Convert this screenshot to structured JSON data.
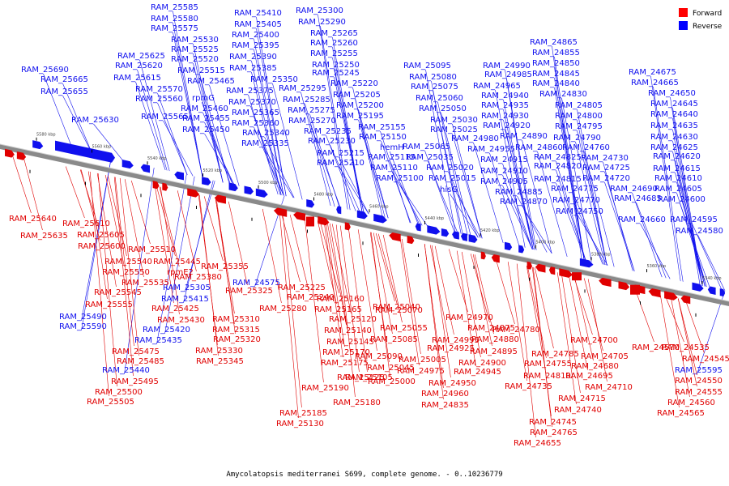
{
  "caption": "Amycolatopsis mediterranei S699, complete genome. - 0..10236779",
  "legend": [
    {
      "label": "Forward",
      "color": "#ff0000"
    },
    {
      "label": "Reverse",
      "color": "#0000ff"
    }
  ],
  "colors": {
    "forward": "#e00000",
    "reverse": "#1010ee",
    "axis": "#888888"
  },
  "ticks": [
    "5580 kbp",
    "5560 kbp",
    "5540 kbp",
    "5520 kbp",
    "5500 kbp",
    "5480 kbp",
    "5460 kbp",
    "5440 kbp",
    "5420 kbp",
    "5400 kbp",
    "5380 kbp",
    "5360 kbp",
    "5340 kbp"
  ],
  "reverse_labels": [
    "RAM_25690",
    "RAM_25665",
    "RAM_25655",
    "RAM_25630",
    "RAM_25625",
    "RAM_25620",
    "RAM_25615",
    "RAM_25585",
    "RAM_25580",
    "RAM_25575",
    "RAM_25570",
    "RAM_25560",
    "RAM_25565",
    "RAM_25530",
    "RAM_25525",
    "RAM_25520",
    "RAM_25515",
    "RAM_25465",
    "rpmG",
    "RAM_25460",
    "RAM_25455",
    "RAM_25450",
    "RAM_25410",
    "RAM_25405",
    "RAM_25400",
    "RAM_25395",
    "RAM_25390",
    "RAM_25385",
    "RAM_25375",
    "RAM_25370",
    "RAM_25365",
    "RAM_25360",
    "RAM_25350",
    "RAM_25340",
    "RAM_25335",
    "RAM_25300",
    "RAM_25290",
    "RAM_25265",
    "RAM_25260",
    "RAM_25255",
    "RAM_25250",
    "RAM_25245",
    "RAM_25295",
    "RAM_25285",
    "RAM_25275",
    "RAM_25270",
    "RAM_25235",
    "RAM_25230",
    "RAM_25220",
    "RAM_25205",
    "RAM_25200",
    "RAM_25195",
    "RAM_25215",
    "RAM_25210",
    "RAM_25155",
    "RAM_25150",
    "hemH",
    "RAM_25115",
    "RAM_25110",
    "RAM_25100",
    "RAM_25095",
    "RAM_25080",
    "RAM_25075",
    "RAM_25060",
    "RAM_25050",
    "RAM_25030",
    "RAM_25025",
    "RAM_25065",
    "RAM_25035",
    "RAM_25020",
    "RAM_25015",
    "hisG",
    "RAM_24990",
    "RAM_24985",
    "RAM_24965",
    "RAM_24940",
    "RAM_24935",
    "RAM_24930",
    "RAM_24920",
    "RAM_24980",
    "RAM_24955",
    "RAM_24915",
    "RAM_24910",
    "RAM_24905",
    "RAM_24865",
    "RAM_24855",
    "RAM_24850",
    "RAM_24845",
    "RAM_24840",
    "RAM_24830",
    "RAM_24805",
    "RAM_24800",
    "RAM_24795",
    "RAM_24890",
    "RAM_24860",
    "RAM_24790",
    "RAM_24760",
    "RAM_24825",
    "RAM_24820",
    "RAM_24815",
    "RAM_24885",
    "RAM_24870",
    "RAM_24730",
    "RAM_24725",
    "RAM_24720",
    "RAM_24775",
    "RAM_24770",
    "RAM_24750",
    "RAM_24690",
    "RAM_24685",
    "RAM_24660",
    "RAM_24675",
    "RAM_24665",
    "RAM_24650",
    "RAM_24645",
    "RAM_24640",
    "RAM_24635",
    "RAM_24630",
    "RAM_24625",
    "RAM_24620",
    "RAM_24615",
    "RAM_24610",
    "RAM_24605",
    "RAM_24600",
    "RAM_24595",
    "RAM_24580",
    "RAM_24575",
    "RAM_25305",
    "RAM_25415",
    "RAM_25420",
    "RAM_25435",
    "RAM_25440",
    "RAM_25490",
    "RAM_25590",
    "RAM_25595",
    "RAM_24540"
  ],
  "forward_labels": [
    "RAM_25640",
    "RAM_25635",
    "RAM_25610",
    "RAM_25605",
    "RAM_25600",
    "RAM_25510",
    "RAM_25540",
    "RAM_25445",
    "RAM_25550",
    "rpmE2",
    "RAM_25535",
    "RAM_25545",
    "RAM_25555",
    "RAM_25380",
    "RAM_25355",
    "RAM_25325",
    "RAM_25425",
    "RAM_25430",
    "RAM_25475",
    "RAM_25485",
    "RAM_25495",
    "RAM_25500",
    "RAM_25505",
    "RAM_25280",
    "RAM_25310",
    "RAM_25315",
    "RAM_25320",
    "RAM_25330",
    "RAM_25345",
    "RAM_25225",
    "RAM_25240",
    "RAM_25160",
    "RAM_25165",
    "RAM_25120",
    "RAM_25140",
    "RAM_25145",
    "RAM_25170",
    "RAM_25175",
    "RAM_25125",
    "RAM_25190",
    "RAM_25180",
    "RAM_25185",
    "RAM_25130",
    "RAM_25105",
    "RAM_25070",
    "RAM_25040",
    "RAM_25055",
    "RAM_25085",
    "RAM_25090",
    "RAM_25045",
    "RAM_25000",
    "RAM_25005",
    "RAM_24975",
    "RAM_24970",
    "RAM_24995",
    "RAM_24925",
    "RAM_24875",
    "RAM_24880",
    "RAM_24895",
    "RAM_24900",
    "RAM_24945",
    "RAM_24950",
    "RAM_24960",
    "RAM_24835",
    "RAM_24780",
    "RAM_24755",
    "RAM_24785",
    "RAM_24810",
    "RAM_24735",
    "RAM_24700",
    "RAM_24695",
    "RAM_24680",
    "RAM_24705",
    "RAM_24710",
    "RAM_24715",
    "RAM_24740",
    "RAM_24745",
    "RAM_24765",
    "RAM_24655",
    "RAM_24570",
    "RAM_24535",
    "RAM_24545",
    "RAM_24550",
    "RAM_24555",
    "RAM_24560",
    "RAM_24565"
  ]
}
